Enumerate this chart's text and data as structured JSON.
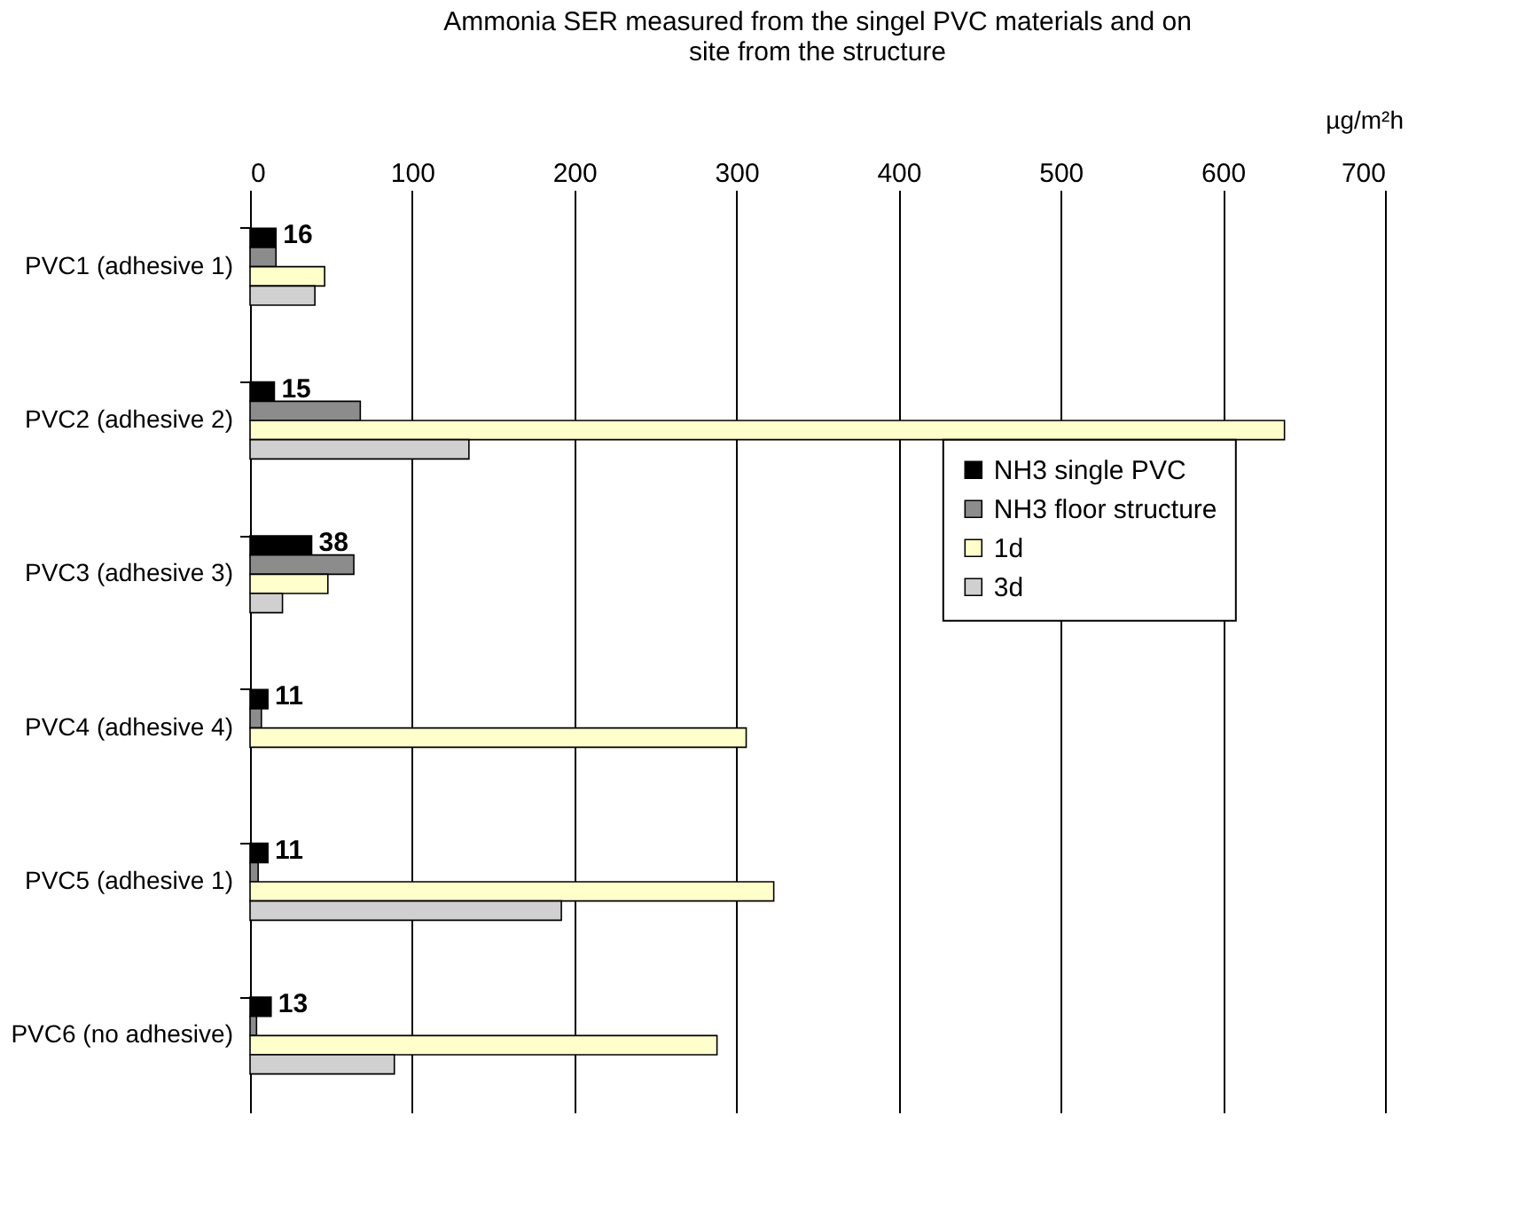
{
  "chart_data": {
    "type": "bar",
    "orientation": "horizontal",
    "title": "Ammonia SER measured from the singel PVC materials and on site from the structure",
    "xlabel": "µg/m²h",
    "categories": [
      "PVC1 (adhesive 1)",
      "PVC2 (adhesive 2)",
      "PVC3 (adhesive 3)",
      "PVC4 (adhesive 4)",
      "PVC5 (adhesive 1)",
      "PVC6 (no adhesive)"
    ],
    "series": [
      {
        "name": "NH3 single PVC",
        "color": "#000000",
        "values": [
          16,
          15,
          38,
          11,
          11,
          13
        ],
        "value_labels": [
          "16",
          "15",
          "38",
          "11",
          "11",
          "13"
        ]
      },
      {
        "name": "NH3 floor structure",
        "color": "#8c8c8c",
        "values": [
          16,
          68,
          64,
          7,
          5,
          4
        ]
      },
      {
        "name": "1d",
        "color": "#ffffcc",
        "values": [
          46,
          638,
          48,
          306,
          323,
          288
        ]
      },
      {
        "name": "3d",
        "color": "#d0d0d0",
        "values": [
          40,
          135,
          20,
          null,
          192,
          89
        ]
      }
    ],
    "xlim": [
      0,
      700
    ],
    "xticks": [
      0,
      100,
      200,
      300,
      400,
      500,
      600,
      700
    ],
    "grid": "x",
    "legend": "right"
  }
}
